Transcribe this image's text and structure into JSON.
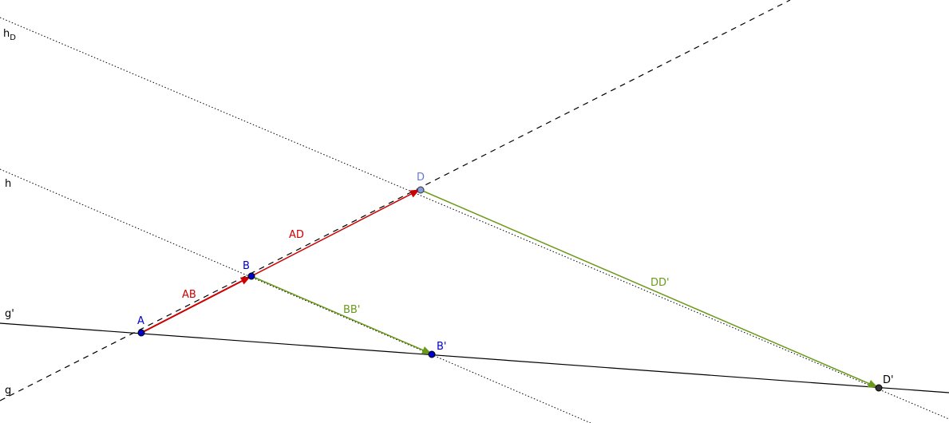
{
  "colors": {
    "vector_red": "#cc0000",
    "vector_green": "#6a9a1a",
    "point_blue": "#0000cc",
    "point_light": "#8899dd",
    "point_dark": "#333333",
    "line_black": "#000000",
    "label_red": "#cc0000",
    "label_green": "#6a9a1a",
    "label_blue": "#0000cc",
    "label_light_blue": "#6677dd",
    "label_black": "#000000"
  },
  "lines": {
    "g": {
      "label": "g"
    },
    "g_prime": {
      "label": "g'"
    },
    "h": {
      "label": "h"
    },
    "h_D": {
      "label": "h",
      "sub": "D"
    }
  },
  "points": {
    "A": {
      "label": "A"
    },
    "B": {
      "label": "B"
    },
    "D": {
      "label": "D"
    },
    "B_prime": {
      "label": "B'"
    },
    "D_prime": {
      "label": "D'"
    }
  },
  "vectors": {
    "AB": {
      "label": "AB"
    },
    "AD": {
      "label": "AD"
    },
    "BB_prime": {
      "label": "BB'"
    },
    "DD_prime": {
      "label": "DD'"
    }
  }
}
